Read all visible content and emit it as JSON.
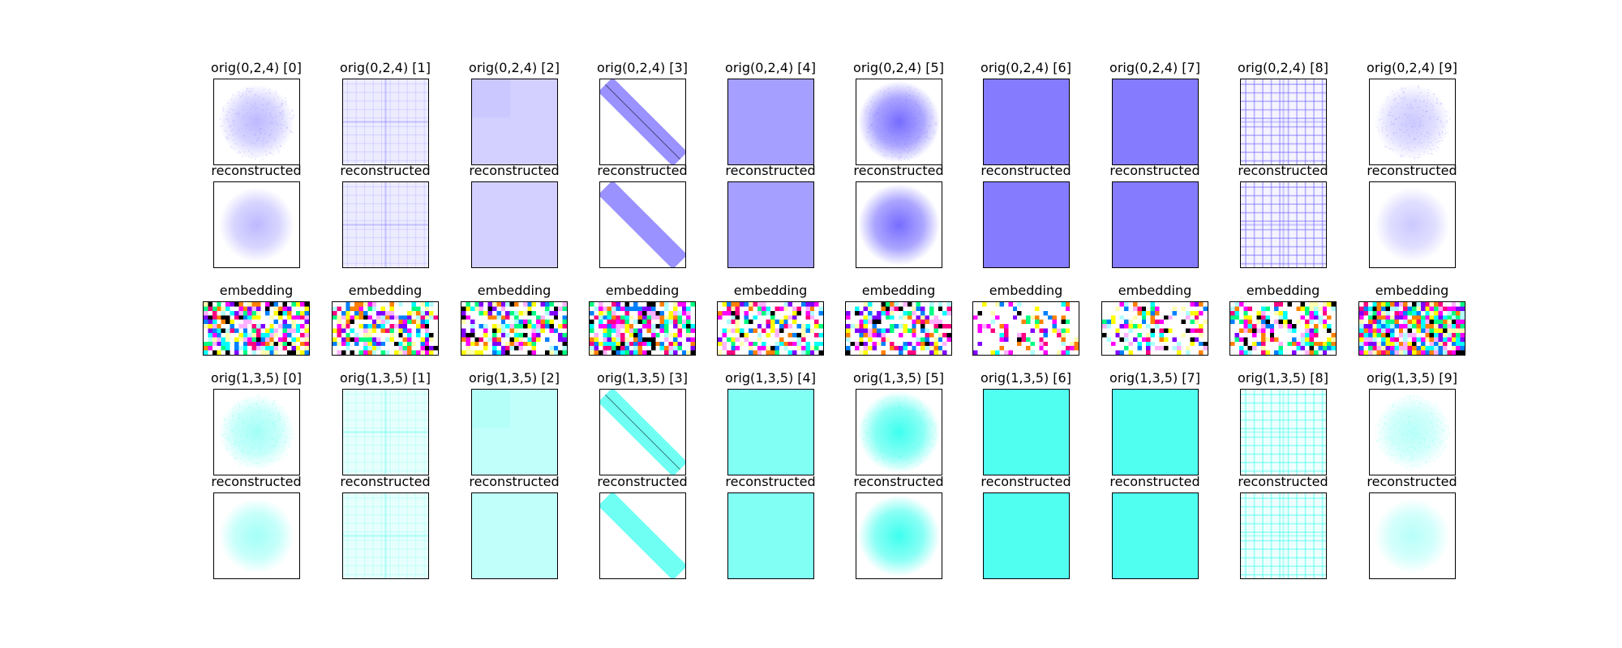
{
  "figure": {
    "columns": [
      "0",
      "1",
      "2",
      "3",
      "4",
      "5",
      "6",
      "7",
      "8",
      "9"
    ],
    "rows": [
      {
        "row_id": "orig-024",
        "kind": "image",
        "tint": "#6e64ff",
        "titles": [
          "orig(0,2,4) [0]",
          "orig(0,2,4) [1]",
          "orig(0,2,4) [2]",
          "orig(0,2,4) [3]",
          "orig(0,2,4) [4]",
          "orig(0,2,4) [5]",
          "orig(0,2,4) [6]",
          "orig(0,2,4) [7]",
          "orig(0,2,4) [8]",
          "orig(0,2,4) [9]"
        ]
      },
      {
        "row_id": "recon-024",
        "kind": "image",
        "tint": "#6e64ff",
        "titles": [
          "reconstructed",
          "reconstructed",
          "reconstructed",
          "reconstructed",
          "reconstructed",
          "reconstructed",
          "reconstructed",
          "reconstructed",
          "reconstructed",
          "reconstructed"
        ]
      },
      {
        "row_id": "embedding",
        "kind": "embedding",
        "titles": [
          "embedding",
          "embedding",
          "embedding",
          "embedding",
          "embedding",
          "embedding",
          "embedding",
          "embedding",
          "embedding",
          "embedding"
        ],
        "palette": [
          "#ff00ff",
          "#00ffff",
          "#ffff00",
          "#ff0080",
          "#00ff80",
          "#0080ff",
          "#8000ff",
          "#ff8000",
          "#000000",
          "#ffb0ff",
          "#b0ffff",
          "#ffffb0"
        ]
      },
      {
        "row_id": "orig-135",
        "kind": "image",
        "tint": "#33ffee",
        "titles": [
          "orig(1,3,5) [0]",
          "orig(1,3,5) [1]",
          "orig(1,3,5) [2]",
          "orig(1,3,5) [3]",
          "orig(1,3,5) [4]",
          "orig(1,3,5) [5]",
          "orig(1,3,5) [6]",
          "orig(1,3,5) [7]",
          "orig(1,3,5) [8]",
          "orig(1,3,5) [9]"
        ]
      },
      {
        "row_id": "recon-135",
        "kind": "image",
        "tint": "#33ffee",
        "titles": [
          "reconstructed",
          "reconstructed",
          "reconstructed",
          "reconstructed",
          "reconstructed",
          "reconstructed",
          "reconstructed",
          "reconstructed",
          "reconstructed",
          "reconstructed"
        ]
      }
    ],
    "patterns": [
      "disc-sparse",
      "grid-light",
      "flat-pale",
      "diagonal-band",
      "flat-medium",
      "disc-dense",
      "flat-strong",
      "flat-strong",
      "grid-dense",
      "disc-faint"
    ],
    "embedding_density": [
      0.75,
      0.65,
      0.6,
      0.75,
      0.55,
      0.6,
      0.3,
      0.4,
      0.55,
      0.9
    ]
  }
}
